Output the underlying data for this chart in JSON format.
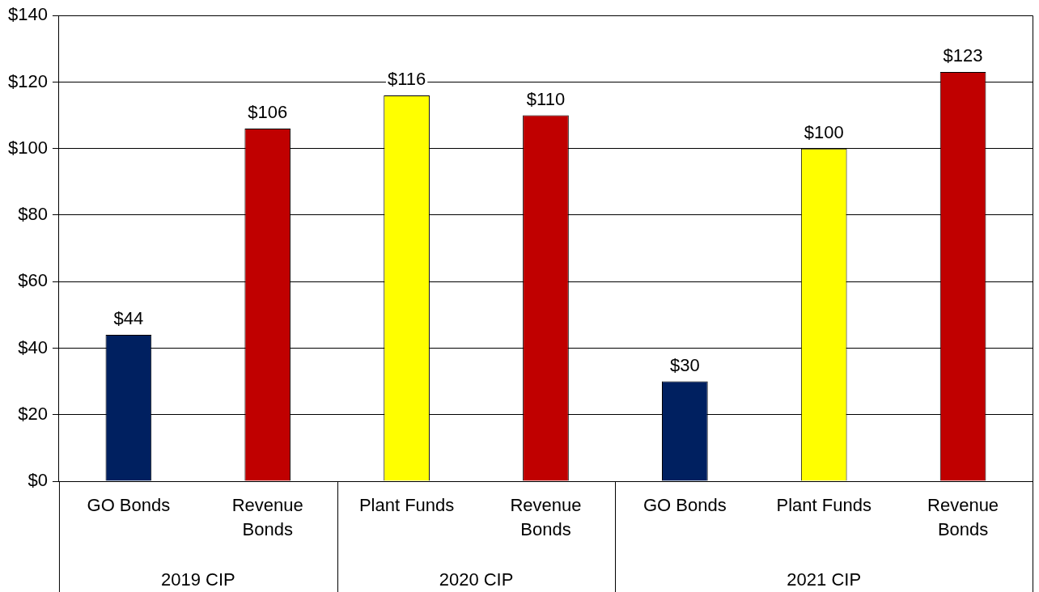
{
  "chart_data": {
    "type": "bar",
    "categories": [
      "GO Bonds",
      "Revenue Bonds",
      "Plant Funds",
      "Revenue Bonds",
      "GO Bonds",
      "Plant Funds",
      "Revenue Bonds"
    ],
    "values": [
      44,
      106,
      116,
      110,
      30,
      100,
      123
    ],
    "colors": [
      "#002060",
      "#c00000",
      "#ffff00",
      "#c00000",
      "#002060",
      "#ffff00",
      "#c00000"
    ],
    "value_labels": [
      "$44",
      "$106",
      "$116",
      "$110",
      "$30",
      "$100",
      "$123"
    ],
    "ylim": [
      0,
      140
    ],
    "yticks": [
      {
        "value": 0,
        "label": "$0"
      },
      {
        "value": 20,
        "label": "$20"
      },
      {
        "value": 40,
        "label": "$40"
      },
      {
        "value": 60,
        "label": "$60"
      },
      {
        "value": 80,
        "label": "$80"
      },
      {
        "value": 100,
        "label": "$100"
      },
      {
        "value": 120,
        "label": "$120"
      },
      {
        "value": 140,
        "label": "$140"
      }
    ],
    "grid": "y",
    "annotations": [
      "2019 CIP",
      "2020 CIP",
      "2021 CIP"
    ]
  }
}
